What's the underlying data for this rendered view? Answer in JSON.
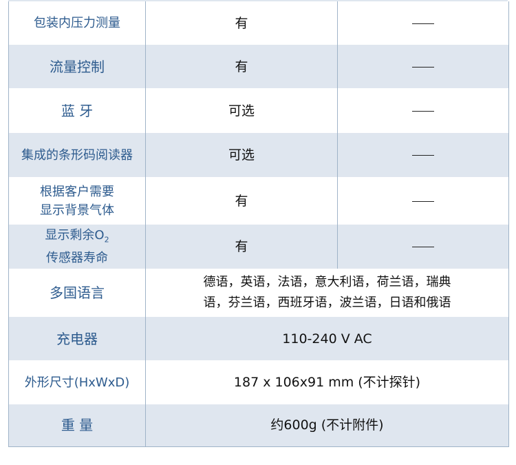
{
  "rows": [
    {
      "feature": "包装内压力测量",
      "value": "有",
      "other": "—"
    },
    {
      "feature": "流量控制",
      "value": "有",
      "other": "—"
    },
    {
      "feature": "蓝 牙",
      "value": "可选",
      "other": "—"
    },
    {
      "feature": "集成的条形码阅读器",
      "value": "可选",
      "other": "—"
    },
    {
      "feature_line1": "根据客户需要",
      "feature_line2": "显示背景气体",
      "value": "有",
      "other": "—"
    },
    {
      "feature_line1": "显示剩余O",
      "feature_sub": "2",
      "feature_line2": "传感器寿命",
      "value": "有",
      "other": "—"
    },
    {
      "feature": "多国语言",
      "value_line1": "德语，英语，法语，意大利语，荷兰语，瑞典",
      "value_line2": "语，芬兰语，西班牙语，波兰语，日语和俄语"
    },
    {
      "feature": "充电器",
      "value": "110-240 V AC"
    },
    {
      "feature": "外形尺寸(HxWxD)",
      "value": "187 x 106x91 mm (不计探针)"
    },
    {
      "feature": "重 量",
      "value": "约600g (不计附件)"
    }
  ],
  "colors": {
    "label": "#2d5b8e",
    "stripe": "#dfe6ef",
    "border": "#9fb3c8"
  }
}
